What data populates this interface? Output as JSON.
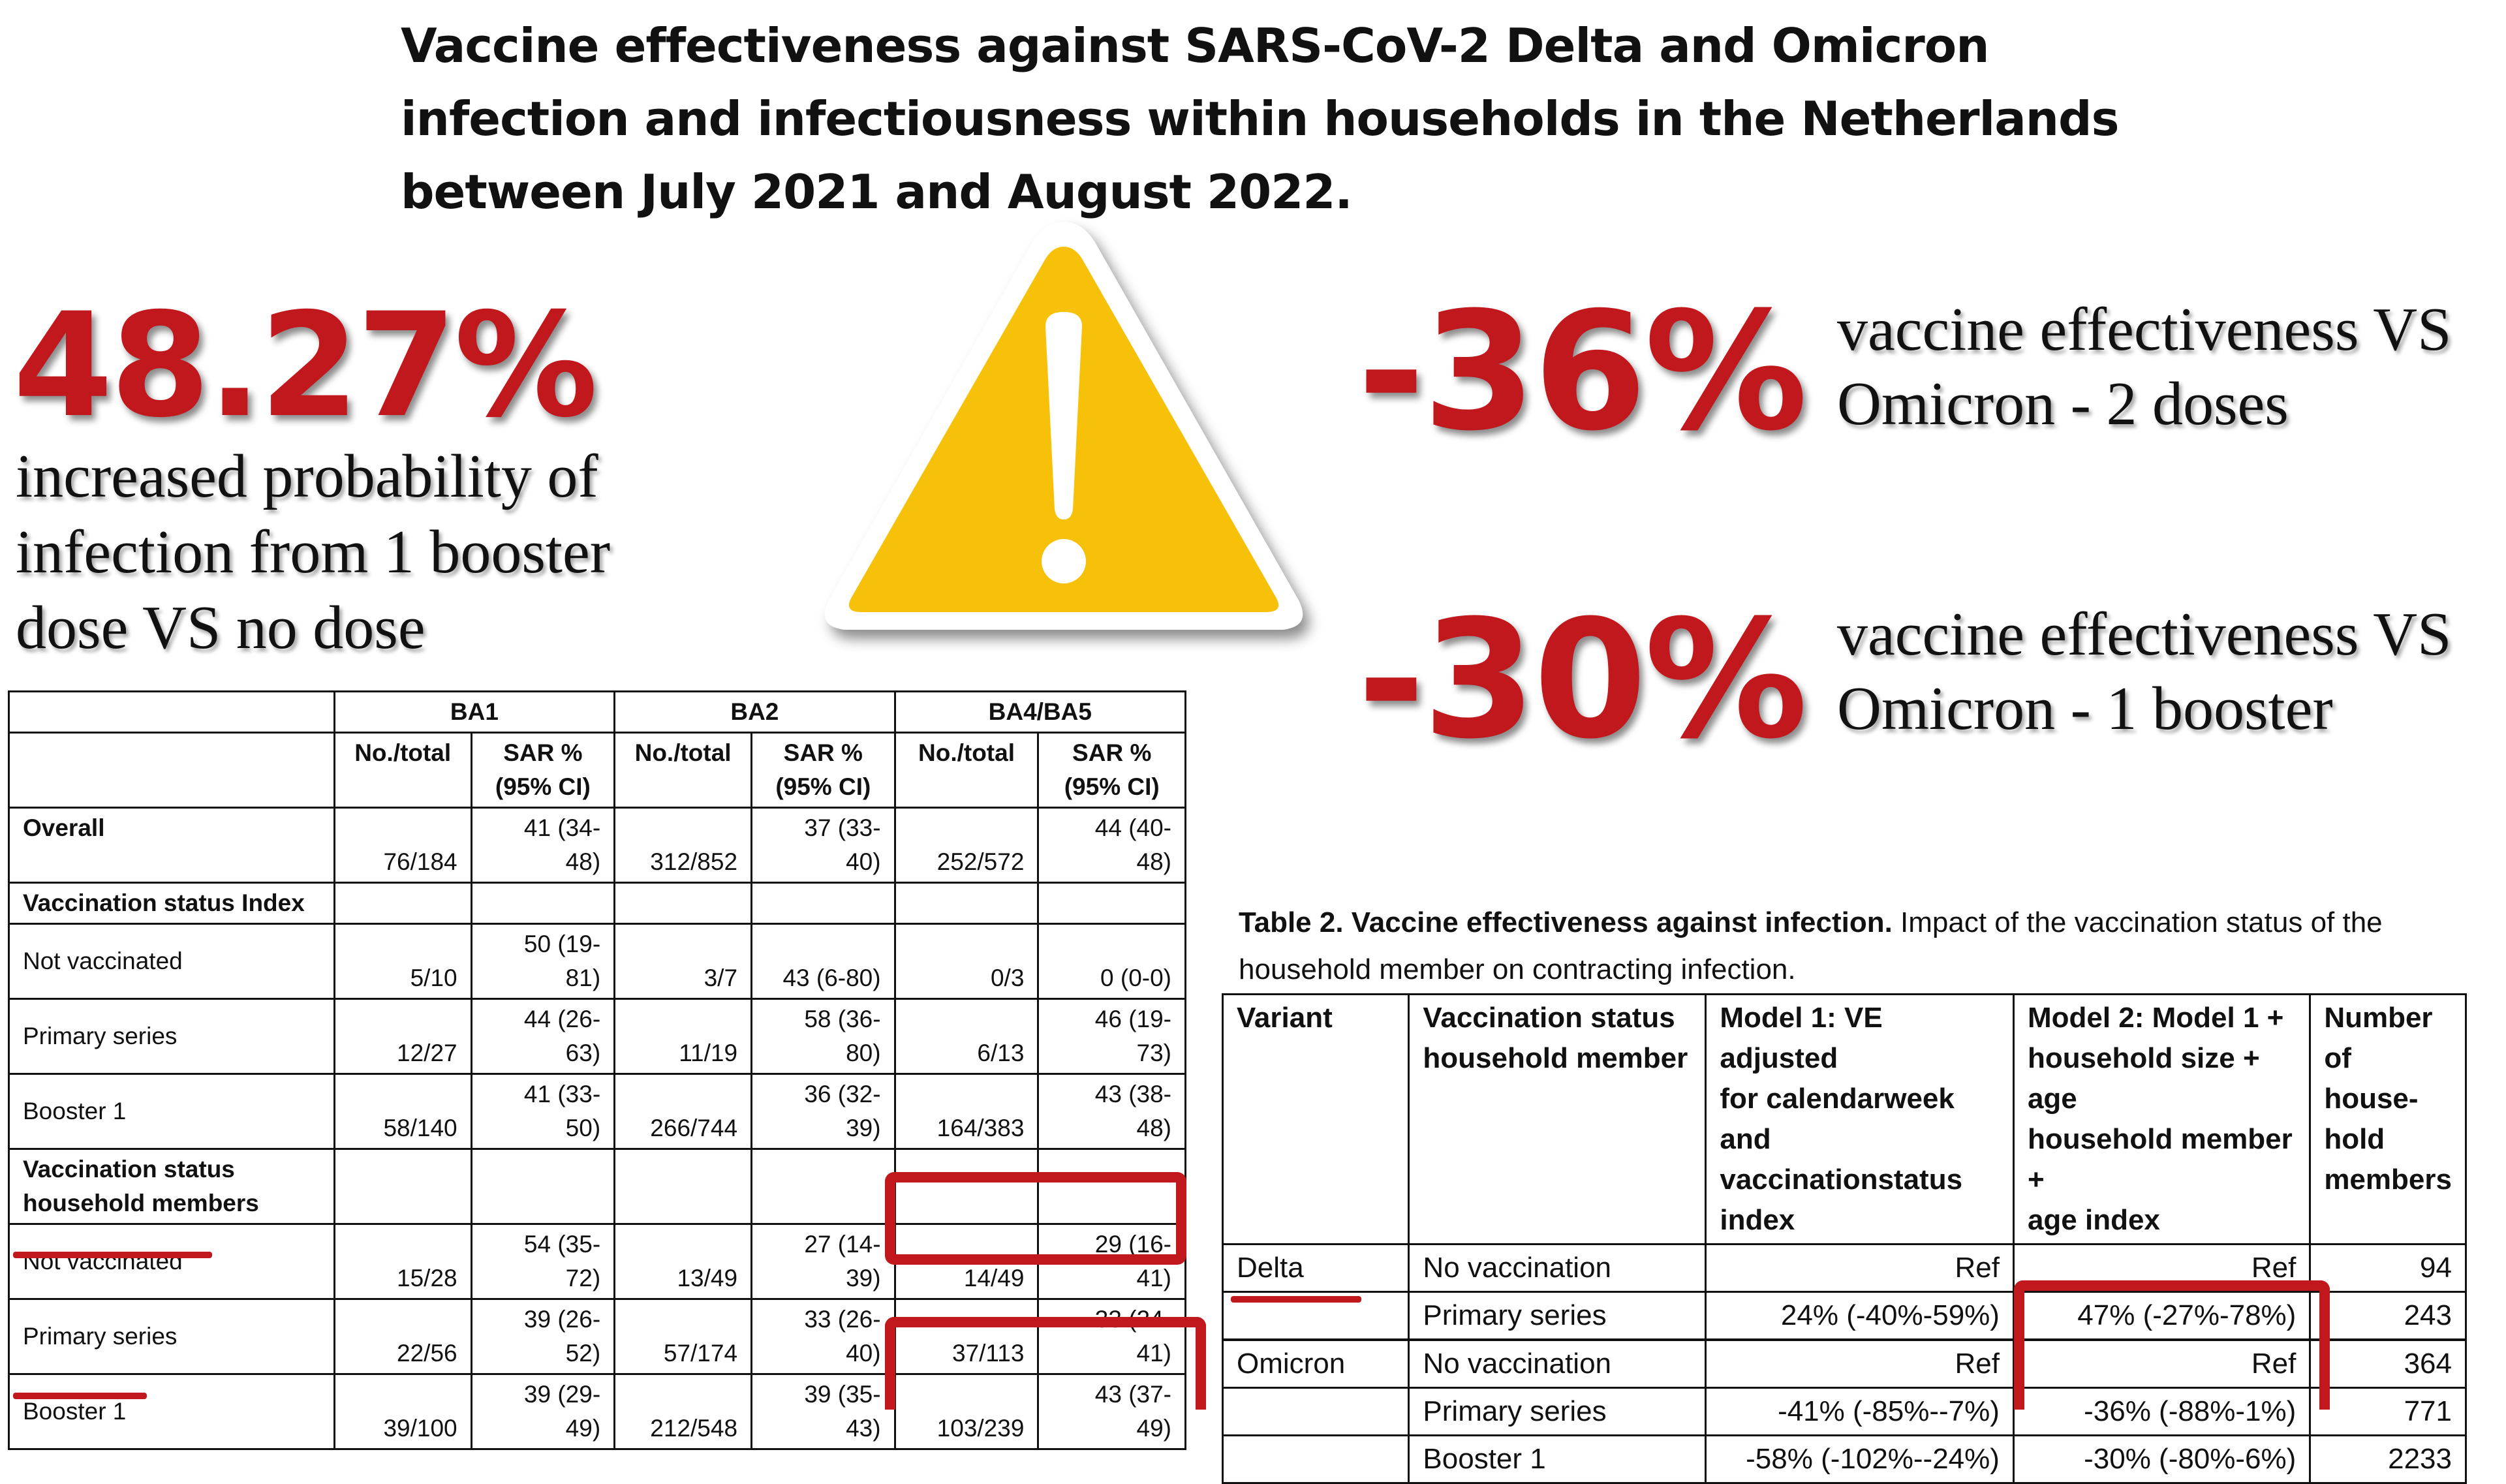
{
  "headline": "Vaccine effectiveness against SARS-CoV-2 Delta and Omicron infection and infectiousness within households in the Netherlands between July 2021 and August 2022.",
  "left_stat": {
    "value": "48.27%",
    "description": "increased probability of infection from 1 booster dose VS no dose"
  },
  "right_stats": [
    {
      "value": "-36%",
      "line1": "vaccine effectiveness VS",
      "line2": "Omicron - 2 doses"
    },
    {
      "value": "-30%",
      "line1": "vaccine effectiveness VS",
      "line2": "Omicron - 1 booster"
    }
  ],
  "warning_icon": "warning-triangle-icon",
  "colors": {
    "accent_red": "#c0181c",
    "warning_yellow": "#f7c10a",
    "warning_border": "#ffffff"
  },
  "sar_table": {
    "groups": [
      "BA1",
      "BA2",
      "BA4/BA5"
    ],
    "col_no": "No./total",
    "col_sar_1": "SAR %",
    "col_sar_2": "(95% CI)",
    "sections": {
      "overall": "Overall",
      "index": "Vaccination status Index",
      "household_1": "Vaccination status",
      "household_2": "household members"
    },
    "overall": {
      "ba1_no": "76/184",
      "ba1_sar_1": "41 (34-",
      "ba1_sar_2": "48)",
      "ba2_no": "312/852",
      "ba2_sar_1": "37 (33-",
      "ba2_sar_2": "40)",
      "ba45_no": "252/572",
      "ba45_sar_1": "44 (40-",
      "ba45_sar_2": "48)"
    },
    "index_rows": [
      {
        "label": "Not vaccinated",
        "ba1_no": "5/10",
        "ba1_sar_1": "50 (19-",
        "ba1_sar_2": "81)",
        "ba2_no": "3/7",
        "ba2_sar_1": "",
        "ba2_sar_2": "43 (6-80)",
        "ba45_no": "0/3",
        "ba45_sar_1": "",
        "ba45_sar_2": "0 (0-0)"
      },
      {
        "label": "Primary series",
        "ba1_no": "12/27",
        "ba1_sar_1": "44 (26-",
        "ba1_sar_2": "63)",
        "ba2_no": "11/19",
        "ba2_sar_1": "58 (36-",
        "ba2_sar_2": "80)",
        "ba45_no": "6/13",
        "ba45_sar_1": "46 (19-",
        "ba45_sar_2": "73)"
      },
      {
        "label": "Booster 1",
        "ba1_no": "58/140",
        "ba1_sar_1": "41 (33-",
        "ba1_sar_2": "50)",
        "ba2_no": "266/744",
        "ba2_sar_1": "36 (32-",
        "ba2_sar_2": "39)",
        "ba45_no": "164/383",
        "ba45_sar_1": "43 (38-",
        "ba45_sar_2": "48)"
      }
    ],
    "household_rows": [
      {
        "label": "Not vaccinated",
        "ba1_no": "15/28",
        "ba1_sar_1": "54 (35-",
        "ba1_sar_2": "72)",
        "ba2_no": "13/49",
        "ba2_sar_1": "27 (14-",
        "ba2_sar_2": "39)",
        "ba45_no": "14/49",
        "ba45_sar_1": "29 (16-",
        "ba45_sar_2": "41)"
      },
      {
        "label": "Primary series",
        "ba1_no": "22/56",
        "ba1_sar_1": "39 (26-",
        "ba1_sar_2": "52)",
        "ba2_no": "57/174",
        "ba2_sar_1": "33 (26-",
        "ba2_sar_2": "40)",
        "ba45_no": "37/113",
        "ba45_sar_1": "33 (24-",
        "ba45_sar_2": "41)"
      },
      {
        "label": "Booster 1",
        "ba1_no": "39/100",
        "ba1_sar_1": "39 (29-",
        "ba1_sar_2": "49)",
        "ba2_no": "212/548",
        "ba2_sar_1": "39 (35-",
        "ba2_sar_2": "43)",
        "ba45_no": "103/239",
        "ba45_sar_1": "43 (37-",
        "ba45_sar_2": "49)"
      }
    ]
  },
  "ve_table": {
    "caption_bold": "Table 2. Vaccine effectiveness against infection.",
    "caption_rest": " Impact of the vaccination status of the household member on contracting infection.",
    "headers": {
      "variant": "Variant",
      "status_1": "Vaccination status",
      "status_2": "household member",
      "model1_1": "Model 1: VE adjusted",
      "model1_2": "for calendarweek and",
      "model1_3": "vaccinationstatus index",
      "model2_1": "Model 2: Model 1 +",
      "model2_2": "household size + age",
      "model2_3": "household member +",
      "model2_4": "age index",
      "number_1": "Number",
      "number_2": "of house-",
      "number_3": "hold",
      "number_4": "members"
    },
    "rows": [
      {
        "variant": "Delta",
        "status": "No vaccination",
        "model1": "Ref",
        "model2": "Ref",
        "number": "94"
      },
      {
        "variant": "",
        "status": "Primary series",
        "model1": "24% (-40%-59%)",
        "model2": "47% (-27%-78%)",
        "number": "243"
      },
      {
        "variant": "Omicron",
        "status": "No vaccination",
        "model1": "Ref",
        "model2": "Ref",
        "number": "364"
      },
      {
        "variant": "",
        "status": "Primary series",
        "model1": "-41% (-85%--7%)",
        "model2": "-36% (-88%-1%)",
        "number": "771"
      },
      {
        "variant": "",
        "status": "Booster 1",
        "model1": "-58% (-102%--24%)",
        "model2": "-30% (-80%-6%)",
        "number": "2233"
      }
    ]
  }
}
